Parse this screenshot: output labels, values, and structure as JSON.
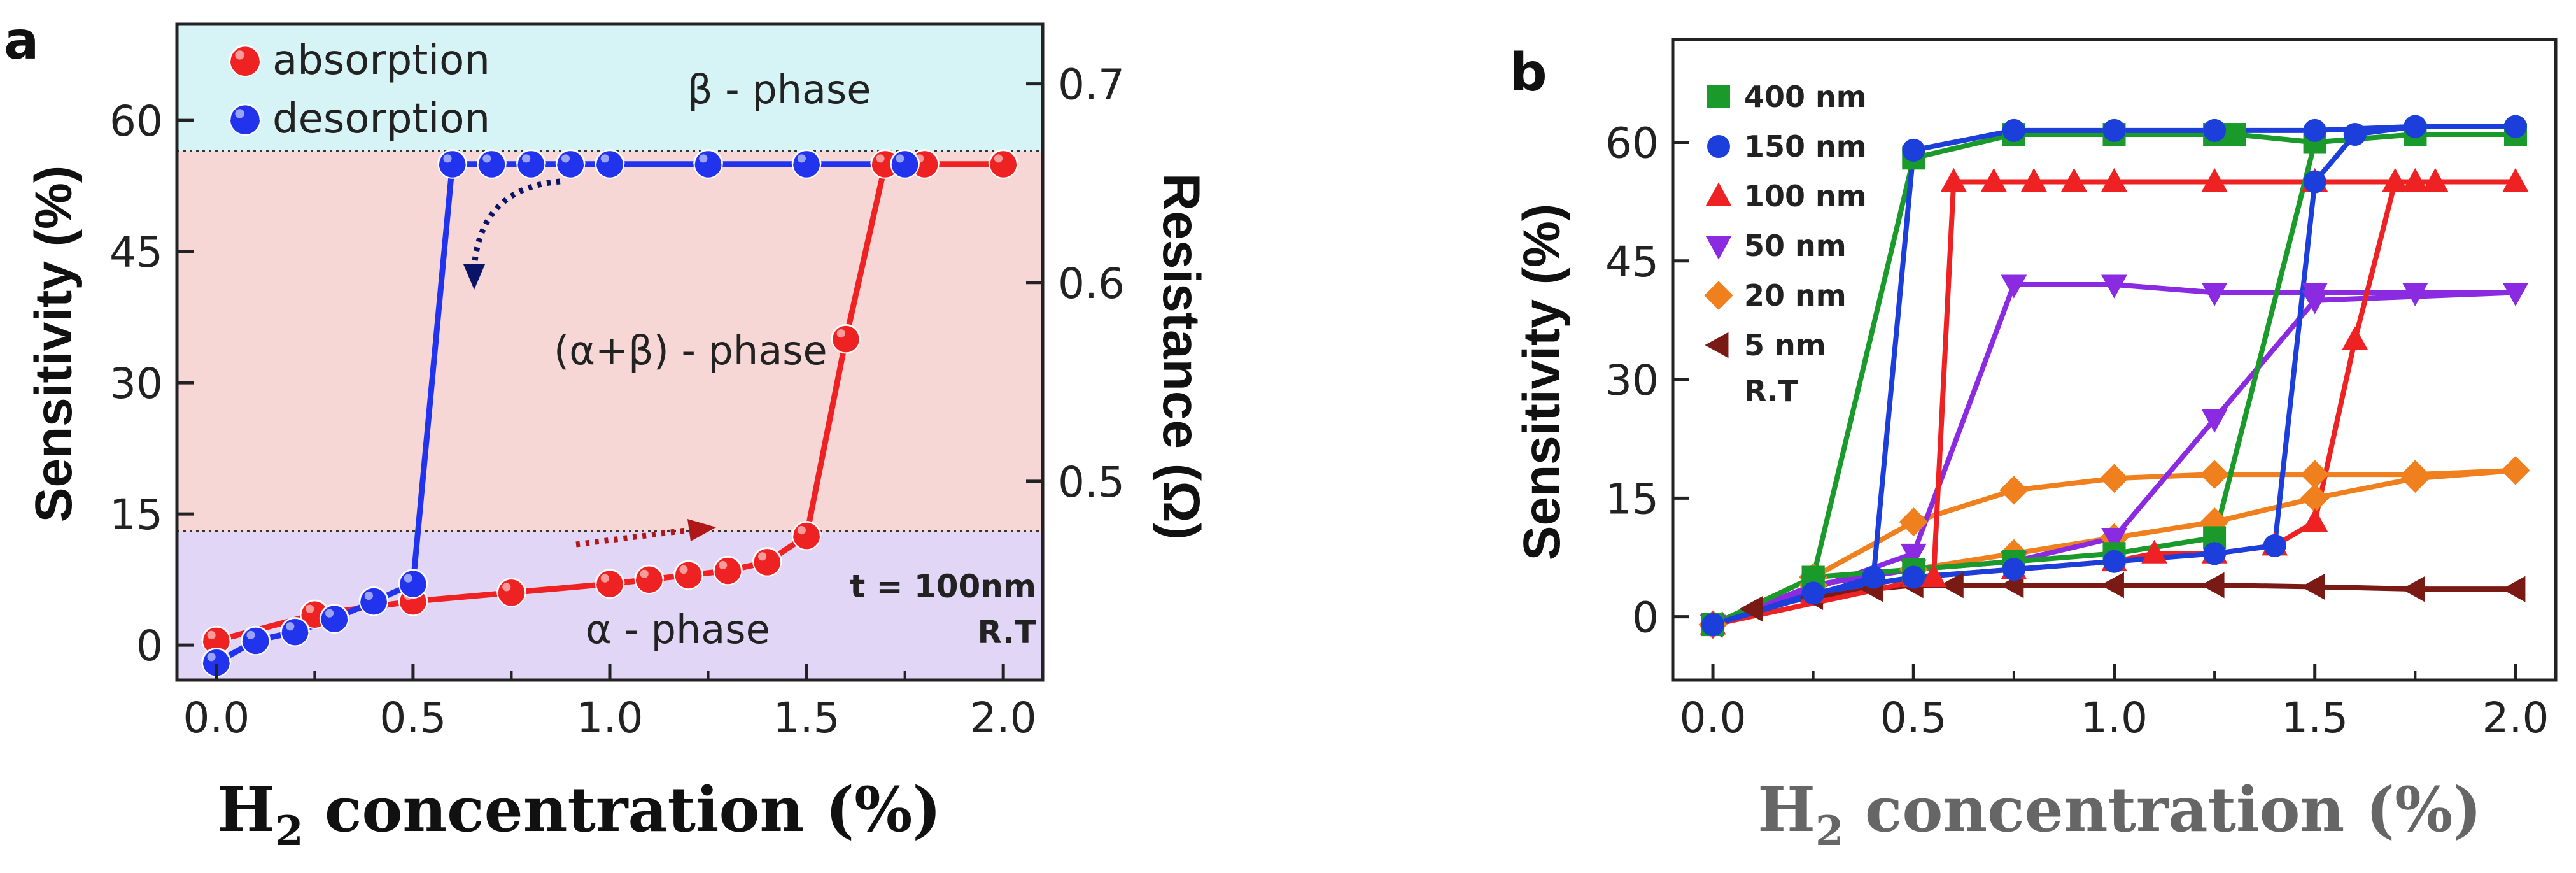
{
  "chart_data": [
    {
      "panel_label": "a",
      "type": "line",
      "title": "",
      "xlabel_main": "H",
      "xlabel_sub": "2",
      "xlabel_rest": " concentration (%)",
      "ylabel": "Sensitivity (%)",
      "y2label": "Resistance (Ω)",
      "xlim": [
        -0.1,
        2.1
      ],
      "ylim": [
        -4,
        71
      ],
      "y2lim": [
        0.4,
        0.73
      ],
      "xticks": [
        "0.0",
        "0.5",
        "1.0",
        "1.5",
        "2.0"
      ],
      "yticks": [
        "0",
        "15",
        "30",
        "45",
        "60"
      ],
      "y2ticks": [
        "0.5",
        "0.6",
        "0.7"
      ],
      "regions": [
        {
          "label": "β - phase",
          "ymin": 56.5,
          "ymax": 71,
          "color": "#d6f4f6"
        },
        {
          "label": "(α+β) - phase",
          "ymin": 13,
          "ymax": 56.5,
          "color": "#f6d7d6"
        },
        {
          "label": "α - phase",
          "ymin": -4,
          "ymax": 13,
          "color": "#e2d6f6"
        }
      ],
      "annotations": [
        "t = 100nm",
        "R.T"
      ],
      "series": [
        {
          "name": "absorption",
          "color": "#ee2222",
          "x": [
            0.0,
            0.25,
            0.5,
            0.75,
            1.0,
            1.1,
            1.2,
            1.3,
            1.4,
            1.5,
            1.6,
            1.7,
            1.8,
            2.0
          ],
          "y": [
            0.5,
            3.5,
            5.0,
            6.0,
            7.0,
            7.5,
            8.0,
            8.5,
            9.5,
            12.5,
            35.0,
            55.0,
            55.0,
            55.0
          ]
        },
        {
          "name": "desorption",
          "color": "#2233ee",
          "x": [
            0.0,
            0.1,
            0.2,
            0.3,
            0.4,
            0.5,
            0.6,
            0.7,
            0.8,
            0.9,
            1.0,
            1.25,
            1.5,
            1.75
          ],
          "y": [
            -2.0,
            0.5,
            1.5,
            3.0,
            5.0,
            7.0,
            55.0,
            55.0,
            55.0,
            55.0,
            55.0,
            55.0,
            55.0,
            55.0
          ]
        }
      ]
    },
    {
      "panel_label": "b",
      "type": "line",
      "title": "",
      "xlabel_main": "H",
      "xlabel_sub": "2",
      "xlabel_rest": " concentration (%)",
      "ylabel": "Sensitivity (%)",
      "xlim": [
        -0.1,
        2.1
      ],
      "ylim": [
        -8,
        73
      ],
      "xticks": [
        "0.0",
        "0.5",
        "1.0",
        "1.5",
        "2.0"
      ],
      "yticks": [
        "0",
        "15",
        "30",
        "45",
        "60"
      ],
      "legend_extra": "R.T",
      "series": [
        {
          "name": "400 nm",
          "color": "#1a9a2a",
          "marker": "square",
          "x": [
            0.0,
            0.25,
            0.5,
            0.75,
            1.0,
            1.25,
            1.3,
            1.5,
            1.75,
            2.0,
            1.75,
            1.5,
            1.25,
            1.0,
            0.75,
            0.5,
            0.25,
            0.0
          ],
          "y": [
            -1,
            5,
            58,
            61,
            61,
            61,
            61,
            60,
            61,
            61,
            61,
            60,
            10,
            8,
            7,
            6,
            5,
            -1
          ]
        },
        {
          "name": "150 nm",
          "color": "#1c3fdc",
          "marker": "circle",
          "x": [
            0.0,
            0.4,
            0.5,
            0.75,
            1.0,
            1.25,
            1.5,
            1.75,
            2.0,
            1.75,
            1.6,
            1.5,
            1.4,
            1.25,
            1.0,
            0.75,
            0.5,
            0.25,
            0.0
          ],
          "y": [
            -1,
            5,
            59,
            61.5,
            61.5,
            61.5,
            61.5,
            62,
            62,
            62,
            61,
            55,
            9,
            8,
            7,
            6,
            5,
            3,
            -1
          ]
        },
        {
          "name": "100 nm",
          "color": "#ee2222",
          "marker": "triangle-up",
          "x": [
            0.0,
            0.55,
            0.6,
            0.7,
            0.8,
            0.9,
            1.0,
            1.25,
            1.5,
            1.75,
            2.0,
            1.8,
            1.7,
            1.6,
            1.5,
            1.4,
            1.25,
            1.1,
            1.0,
            0.75,
            0.5,
            0.25,
            0.0
          ],
          "y": [
            -1,
            5,
            55,
            55,
            55,
            55,
            55,
            55,
            55,
            55,
            55,
            55,
            55,
            35,
            12,
            9,
            8,
            8,
            7,
            6,
            5,
            3,
            -1
          ]
        },
        {
          "name": "50 nm",
          "color": "#8a2be2",
          "marker": "triangle-down",
          "x": [
            0.0,
            0.5,
            0.75,
            1.0,
            1.25,
            1.5,
            1.75,
            2.0,
            1.5,
            1.25,
            1.0,
            0.75,
            0.5,
            0.25,
            0.0
          ],
          "y": [
            -1,
            8,
            42,
            42,
            41,
            41,
            41,
            41,
            40,
            25,
            10,
            7,
            6,
            4,
            -1
          ]
        },
        {
          "name": "20 nm",
          "color": "#f07f1d",
          "marker": "diamond",
          "x": [
            0.0,
            0.25,
            0.5,
            0.75,
            1.0,
            1.25,
            1.5,
            1.75,
            2.0,
            1.75,
            1.5,
            1.25,
            1.0,
            0.75,
            0.5,
            0.25,
            0.0
          ],
          "y": [
            -1,
            5,
            12,
            16,
            17.5,
            18,
            18,
            18,
            18.5,
            17.5,
            15,
            12,
            10,
            8,
            6,
            4,
            -1
          ]
        },
        {
          "name": "5 nm",
          "color": "#7a1a14",
          "marker": "triangle-left",
          "x": [
            0.0,
            0.1,
            0.25,
            0.4,
            0.5,
            0.6,
            0.75,
            1.0,
            1.25,
            1.5,
            1.75,
            2.0
          ],
          "y": [
            -1,
            1,
            2.5,
            3.5,
            4,
            4,
            4,
            4,
            4,
            3.8,
            3.5,
            3.5
          ]
        }
      ]
    }
  ]
}
